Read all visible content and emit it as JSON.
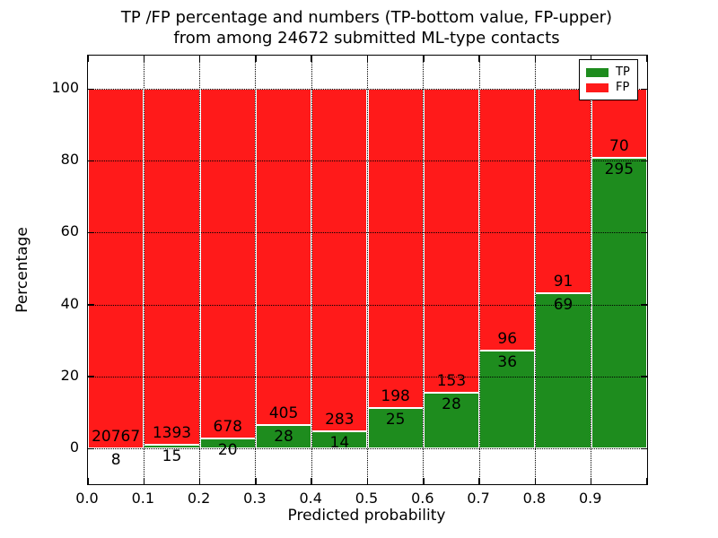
{
  "title": {
    "line1": "TP /FP percentage and numbers (TP-bottom value, FP-upper)",
    "line2": "from among 24672 submitted ML-type contacts"
  },
  "axes": {
    "xlabel": "Predicted probability",
    "ylabel": "Percentage",
    "xtick_labels": [
      "0.0",
      "0.1",
      "0.2",
      "0.3",
      "0.4",
      "0.5",
      "0.6",
      "0.7",
      "0.8",
      "0.9"
    ],
    "ytick_values": [
      0,
      20,
      40,
      60,
      80,
      100
    ]
  },
  "legend": {
    "items": [
      {
        "label": "TP",
        "color": "#1e8c1e"
      },
      {
        "label": "FP",
        "color": "#ff1a1a"
      }
    ]
  },
  "colors": {
    "tp": "#1e8c1e",
    "fp": "#ff1a1a",
    "grid": "#000000",
    "background": "#ffffff"
  },
  "chart_data": {
    "type": "bar",
    "stacked": true,
    "normalized_to_percent": true,
    "title": "TP /FP percentage and numbers (TP-bottom value, FP-upper) from among 24672 submitted ML-type contacts",
    "xlabel": "Predicted probability",
    "ylabel": "Percentage",
    "categories": [
      "0.0",
      "0.1",
      "0.2",
      "0.3",
      "0.4",
      "0.5",
      "0.6",
      "0.7",
      "0.8",
      "0.9"
    ],
    "bin_width": 0.1,
    "series": [
      {
        "name": "TP",
        "position": "bottom",
        "color": "#1e8c1e",
        "counts": [
          8,
          15,
          20,
          28,
          14,
          25,
          28,
          36,
          69,
          295
        ],
        "percent": [
          0.04,
          1.07,
          2.87,
          6.47,
          4.71,
          11.21,
          15.47,
          27.27,
          43.13,
          80.82
        ]
      },
      {
        "name": "FP",
        "position": "top",
        "color": "#ff1a1a",
        "counts": [
          20767,
          1393,
          678,
          405,
          283,
          198,
          153,
          96,
          91,
          70
        ],
        "percent": [
          99.96,
          98.93,
          97.13,
          93.53,
          95.29,
          88.79,
          84.53,
          72.73,
          56.87,
          19.18
        ]
      }
    ],
    "total_contacts": 24672,
    "xlim": [
      0.0,
      1.0
    ],
    "ylim": [
      -10,
      109.2
    ],
    "grid": true,
    "grid_style": "dotted",
    "legend_position": "upper right"
  }
}
